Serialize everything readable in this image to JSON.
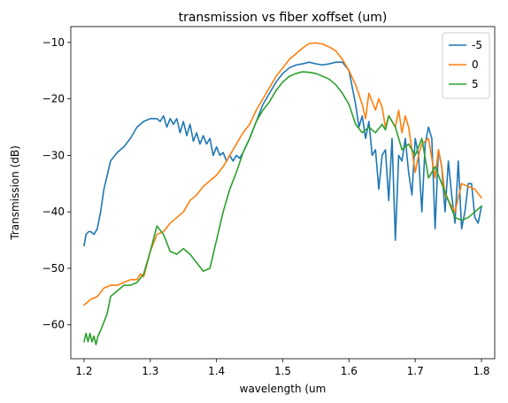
{
  "chart_data": {
    "type": "line",
    "title": "transmission vs fiber xoffset (um)",
    "xlabel": "wavelength (um",
    "ylabel": "Transmission (dB)",
    "xlim": [
      1.18,
      1.82
    ],
    "ylim": [
      -66,
      -7.2
    ],
    "xticks": [
      1.2,
      1.3,
      1.4,
      1.5,
      1.6,
      1.7,
      1.8
    ],
    "xtick_labels": [
      "1.2",
      "1.3",
      "1.4",
      "1.5",
      "1.6",
      "1.7",
      "1.8"
    ],
    "yticks": [
      -60,
      -50,
      -40,
      -30,
      -20,
      -10
    ],
    "ytick_labels": [
      "−60",
      "−50",
      "−40",
      "−30",
      "−20",
      "−10"
    ],
    "grid": false,
    "legend_position": "top-right",
    "series": [
      {
        "name": "-5",
        "color": "#1f77b4",
        "x": [
          1.2,
          1.203,
          1.207,
          1.21,
          1.215,
          1.22,
          1.225,
          1.23,
          1.24,
          1.25,
          1.26,
          1.27,
          1.28,
          1.29,
          1.3,
          1.31,
          1.315,
          1.32,
          1.325,
          1.33,
          1.335,
          1.34,
          1.345,
          1.35,
          1.355,
          1.36,
          1.365,
          1.37,
          1.375,
          1.38,
          1.385,
          1.39,
          1.395,
          1.4,
          1.405,
          1.41,
          1.415,
          1.42,
          1.425,
          1.43,
          1.435,
          1.44,
          1.45,
          1.46,
          1.47,
          1.48,
          1.49,
          1.5,
          1.51,
          1.52,
          1.53,
          1.54,
          1.55,
          1.56,
          1.57,
          1.58,
          1.59,
          1.6,
          1.605,
          1.61,
          1.615,
          1.62,
          1.625,
          1.63,
          1.635,
          1.64,
          1.645,
          1.65,
          1.655,
          1.66,
          1.665,
          1.67,
          1.675,
          1.68,
          1.685,
          1.69,
          1.695,
          1.7,
          1.705,
          1.71,
          1.715,
          1.72,
          1.725,
          1.73,
          1.735,
          1.74,
          1.745,
          1.75,
          1.755,
          1.76,
          1.765,
          1.77,
          1.775,
          1.78,
          1.785,
          1.79,
          1.795,
          1.8
        ],
        "y": [
          -46,
          -44,
          -43.5,
          -43.5,
          -44,
          -43,
          -40,
          -36,
          -31,
          -29.5,
          -28.5,
          -27,
          -25,
          -24,
          -23.5,
          -23.5,
          -24,
          -23,
          -25,
          -23.5,
          -24.5,
          -23.5,
          -26,
          -24,
          -26.5,
          -24.5,
          -27.5,
          -26,
          -28,
          -26.5,
          -28,
          -27,
          -30,
          -28.5,
          -30,
          -29.5,
          -31,
          -30,
          -31,
          -30,
          -30.5,
          -29.5,
          -27,
          -24,
          -21,
          -19,
          -17,
          -15.5,
          -14.5,
          -14,
          -13.8,
          -13.5,
          -13.8,
          -14,
          -13.8,
          -13.5,
          -13.5,
          -15,
          -18,
          -21,
          -25,
          -23,
          -27,
          -24,
          -30,
          -29,
          -36,
          -30,
          -29,
          -38,
          -27,
          -45,
          -30,
          -31,
          -27,
          -33,
          -37,
          -27,
          -30,
          -40,
          -28,
          -25,
          -27,
          -43,
          -29,
          -32,
          -40,
          -31,
          -37,
          -42,
          -31,
          -43,
          -40,
          -35,
          -35,
          -41,
          -42,
          -39
        ]
      },
      {
        "name": "0",
        "color": "#ff7f0e",
        "x": [
          1.2,
          1.21,
          1.22,
          1.23,
          1.24,
          1.25,
          1.26,
          1.27,
          1.28,
          1.285,
          1.29,
          1.3,
          1.31,
          1.32,
          1.33,
          1.34,
          1.35,
          1.36,
          1.37,
          1.38,
          1.39,
          1.4,
          1.41,
          1.42,
          1.43,
          1.44,
          1.45,
          1.46,
          1.47,
          1.48,
          1.49,
          1.5,
          1.51,
          1.52,
          1.53,
          1.54,
          1.55,
          1.56,
          1.57,
          1.58,
          1.59,
          1.6,
          1.61,
          1.62,
          1.625,
          1.63,
          1.64,
          1.645,
          1.65,
          1.655,
          1.66,
          1.67,
          1.675,
          1.68,
          1.685,
          1.69,
          1.7,
          1.705,
          1.71,
          1.72,
          1.73,
          1.735,
          1.74,
          1.745,
          1.75,
          1.76,
          1.77,
          1.78,
          1.79,
          1.8
        ],
        "y": [
          -56.5,
          -55.5,
          -55,
          -53.5,
          -53,
          -53,
          -52.5,
          -52,
          -52,
          -51,
          -51.5,
          -47,
          -44,
          -43.5,
          -42,
          -41,
          -40,
          -38,
          -37,
          -35.5,
          -34.5,
          -33.5,
          -32,
          -30,
          -28,
          -26,
          -24.5,
          -22,
          -20,
          -18,
          -16,
          -14.5,
          -13,
          -12,
          -11,
          -10.2,
          -10.1,
          -10.3,
          -10.8,
          -11.5,
          -13,
          -15,
          -17.5,
          -21,
          -23.5,
          -19,
          -22,
          -20,
          -21.5,
          -25,
          -23,
          -25,
          -22,
          -26,
          -23,
          -25,
          -33,
          -30,
          -28,
          -27,
          -34,
          -29,
          -32,
          -37,
          -38,
          -40,
          -35,
          -35.5,
          -36,
          -37.5
        ]
      },
      {
        "name": "5",
        "color": "#2ca02c",
        "x": [
          1.2,
          1.203,
          1.206,
          1.209,
          1.212,
          1.215,
          1.218,
          1.221,
          1.225,
          1.23,
          1.235,
          1.24,
          1.25,
          1.26,
          1.27,
          1.28,
          1.29,
          1.3,
          1.31,
          1.32,
          1.33,
          1.34,
          1.35,
          1.36,
          1.37,
          1.38,
          1.39,
          1.4,
          1.41,
          1.42,
          1.43,
          1.44,
          1.45,
          1.46,
          1.47,
          1.48,
          1.49,
          1.5,
          1.51,
          1.52,
          1.53,
          1.54,
          1.55,
          1.56,
          1.57,
          1.58,
          1.59,
          1.6,
          1.61,
          1.62,
          1.63,
          1.64,
          1.65,
          1.655,
          1.66,
          1.67,
          1.68,
          1.69,
          1.7,
          1.71,
          1.72,
          1.73,
          1.74,
          1.75,
          1.76,
          1.77,
          1.78,
          1.79,
          1.8
        ],
        "y": [
          -63,
          -61.5,
          -63,
          -61.5,
          -63,
          -62,
          -63.5,
          -62,
          -61,
          -59.5,
          -58,
          -55,
          -54,
          -53,
          -53,
          -52.5,
          -51,
          -47,
          -42.5,
          -44,
          -47,
          -47.5,
          -46.5,
          -47.5,
          -49,
          -50.5,
          -50,
          -45,
          -40,
          -36,
          -33,
          -29.5,
          -27,
          -24,
          -22,
          -20.5,
          -18.5,
          -17,
          -16,
          -15.5,
          -15.2,
          -15.3,
          -15.5,
          -16,
          -16.5,
          -17.5,
          -19,
          -21,
          -24.5,
          -26,
          -25,
          -26,
          -24.5,
          -25.5,
          -23,
          -25,
          -29,
          -28,
          -30,
          -27,
          -34,
          -32,
          -35,
          -38,
          -41,
          -41.5,
          -41,
          -40,
          -39
        ]
      }
    ]
  }
}
